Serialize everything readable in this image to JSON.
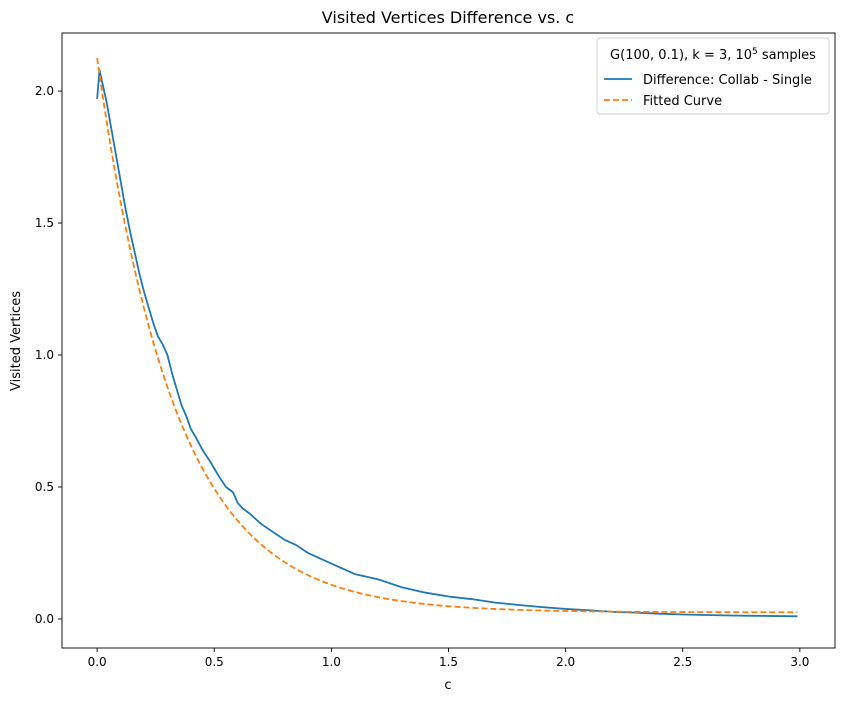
{
  "chart_data": {
    "type": "line",
    "title": "Visited Vertices Difference vs. c",
    "xlabel": "c",
    "ylabel": "Visited Vertices",
    "xlim": [
      -0.15,
      3.15
    ],
    "ylim": [
      -0.11,
      2.22
    ],
    "xticks": [
      0.0,
      0.5,
      1.0,
      1.5,
      2.0,
      2.5,
      3.0
    ],
    "xtick_labels": [
      "0.0",
      "0.5",
      "1.0",
      "1.5",
      "2.0",
      "2.5",
      "3.0"
    ],
    "yticks": [
      0.0,
      0.5,
      1.0,
      1.5,
      2.0
    ],
    "ytick_labels": [
      "0.0",
      "0.5",
      "1.0",
      "1.5",
      "2.0"
    ],
    "grid": false,
    "legend": {
      "position": "top-right",
      "title_prefix": "G(100, 0.1), k = 3, 10",
      "title_sup": "5",
      "title_suffix": " samples"
    },
    "series": [
      {
        "name": "Difference: Collab - Single",
        "color": "#1f77b4",
        "style": "solid",
        "x": [
          0.0,
          0.01,
          0.02,
          0.04,
          0.06,
          0.08,
          0.1,
          0.12,
          0.14,
          0.16,
          0.18,
          0.2,
          0.22,
          0.24,
          0.26,
          0.28,
          0.3,
          0.32,
          0.34,
          0.36,
          0.38,
          0.4,
          0.42,
          0.45,
          0.48,
          0.5,
          0.52,
          0.55,
          0.58,
          0.6,
          0.62,
          0.65,
          0.7,
          0.75,
          0.8,
          0.85,
          0.9,
          0.95,
          1.0,
          1.05,
          1.1,
          1.15,
          1.2,
          1.3,
          1.4,
          1.5,
          1.6,
          1.7,
          1.8,
          1.9,
          2.0,
          2.1,
          2.2,
          2.3,
          2.4,
          2.5,
          2.6,
          2.7,
          2.8,
          2.9,
          2.99
        ],
        "y": [
          1.97,
          2.08,
          2.04,
          1.96,
          1.86,
          1.76,
          1.66,
          1.56,
          1.47,
          1.39,
          1.31,
          1.24,
          1.18,
          1.12,
          1.07,
          1.04,
          1.0,
          0.93,
          0.87,
          0.81,
          0.77,
          0.72,
          0.69,
          0.64,
          0.6,
          0.57,
          0.54,
          0.5,
          0.48,
          0.44,
          0.42,
          0.4,
          0.36,
          0.33,
          0.3,
          0.28,
          0.25,
          0.23,
          0.21,
          0.19,
          0.17,
          0.16,
          0.15,
          0.12,
          0.1,
          0.085,
          0.075,
          0.062,
          0.053,
          0.045,
          0.038,
          0.033,
          0.027,
          0.024,
          0.02,
          0.017,
          0.015,
          0.013,
          0.012,
          0.011,
          0.01
        ]
      },
      {
        "name": "Fitted Curve",
        "color": "#ff7f0e",
        "style": "dashed",
        "fit": {
          "a": 2.1,
          "b": 3.0,
          "c": 0.025
        },
        "x_range": [
          0.0,
          2.99
        ]
      }
    ]
  }
}
